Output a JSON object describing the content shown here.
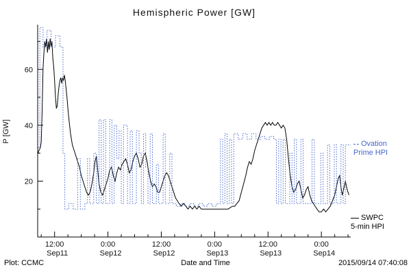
{
  "title": "Hemispheric Power [GW]",
  "ylabel": "P [GW]",
  "footer": {
    "left": "Plot: CCMC",
    "xlabel": "Date and Time",
    "right": "2015/09/14 07:40:08"
  },
  "legend": {
    "ovation_line1": "Ovation",
    "ovation_line2": "Prime HPI",
    "swpc_line1": "SWPC",
    "swpc_line2": "5-min HPI"
  },
  "colors": {
    "ovation": "#4466cc",
    "swpc": "#000000"
  },
  "chart_data": {
    "type": "line",
    "title": "Hemispheric Power [GW]",
    "xlabel": "Date and Time",
    "ylabel": "P [GW]",
    "x_unit": "hours since Sep11 00:00 (2015)",
    "xlim": [
      8.2,
      78.6
    ],
    "ylim": [
      0,
      76
    ],
    "grid": false,
    "legend_position": "right",
    "xticks": [
      {
        "t": 12,
        "time": "12:00",
        "date": "Sep11"
      },
      {
        "t": 24,
        "time": "0:00",
        "date": "Sep12"
      },
      {
        "t": 36,
        "time": "12:00",
        "date": "Sep12"
      },
      {
        "t": 48,
        "time": "0:00",
        "date": "Sep13"
      },
      {
        "t": 60,
        "time": "12:00",
        "date": "Sep13"
      },
      {
        "t": 72,
        "time": "0:00",
        "date": "Sep14"
      }
    ],
    "yticks": [
      20,
      40,
      60
    ],
    "yticks_minor": [
      10,
      30,
      50,
      70
    ],
    "xticks_minor_step_hours": 3,
    "series": [
      {
        "name": "SWPC 5-min HPI",
        "color": "#000000",
        "style": "solid",
        "mode": "linear",
        "points": [
          [
            8.3,
            30
          ],
          [
            8.5,
            31
          ],
          [
            8.8,
            32
          ],
          [
            9.0,
            34
          ],
          [
            9.2,
            45
          ],
          [
            9.4,
            60
          ],
          [
            9.6,
            66
          ],
          [
            9.8,
            70
          ],
          [
            10.0,
            68
          ],
          [
            10.2,
            71
          ],
          [
            10.4,
            66
          ],
          [
            10.6,
            70
          ],
          [
            10.8,
            67
          ],
          [
            11.0,
            71
          ],
          [
            11.2,
            68
          ],
          [
            11.4,
            70
          ],
          [
            11.6,
            64
          ],
          [
            11.8,
            61
          ],
          [
            12.0,
            56
          ],
          [
            12.2,
            50
          ],
          [
            12.4,
            46
          ],
          [
            12.6,
            47
          ],
          [
            12.8,
            51
          ],
          [
            13.0,
            54
          ],
          [
            13.2,
            56
          ],
          [
            13.4,
            57
          ],
          [
            13.6,
            55
          ],
          [
            13.8,
            57
          ],
          [
            14.0,
            56
          ],
          [
            14.2,
            58
          ],
          [
            14.4,
            56
          ],
          [
            14.6,
            53
          ],
          [
            14.8,
            50
          ],
          [
            15.0,
            46
          ],
          [
            15.3,
            41
          ],
          [
            15.6,
            37
          ],
          [
            16.0,
            33
          ],
          [
            16.4,
            31
          ],
          [
            16.8,
            29
          ],
          [
            17.2,
            27
          ],
          [
            17.6,
            25
          ],
          [
            18.0,
            22
          ],
          [
            18.4,
            20
          ],
          [
            18.8,
            18
          ],
          [
            19.2,
            16
          ],
          [
            19.6,
            15
          ],
          [
            20.0,
            16
          ],
          [
            20.4,
            19
          ],
          [
            20.8,
            23
          ],
          [
            21.1,
            27
          ],
          [
            21.4,
            29
          ],
          [
            21.7,
            24
          ],
          [
            22.0,
            19
          ],
          [
            22.4,
            16
          ],
          [
            22.8,
            15
          ],
          [
            23.2,
            17
          ],
          [
            23.6,
            19
          ],
          [
            24.0,
            21
          ],
          [
            24.4,
            24
          ],
          [
            24.8,
            25
          ],
          [
            25.2,
            22
          ],
          [
            25.6,
            20
          ],
          [
            26.0,
            23
          ],
          [
            26.4,
            25
          ],
          [
            26.8,
            24
          ],
          [
            27.2,
            26
          ],
          [
            27.6,
            27
          ],
          [
            28.0,
            28
          ],
          [
            28.4,
            26
          ],
          [
            28.8,
            23
          ],
          [
            29.2,
            24
          ],
          [
            29.6,
            27
          ],
          [
            30.0,
            29
          ],
          [
            30.4,
            30
          ],
          [
            30.8,
            28
          ],
          [
            31.2,
            25
          ],
          [
            31.6,
            26
          ],
          [
            32.0,
            29
          ],
          [
            32.4,
            30
          ],
          [
            32.8,
            27
          ],
          [
            33.2,
            23
          ],
          [
            33.6,
            20
          ],
          [
            34.0,
            18
          ],
          [
            34.4,
            19
          ],
          [
            34.8,
            18
          ],
          [
            35.2,
            16
          ],
          [
            35.6,
            16
          ],
          [
            36.0,
            18
          ],
          [
            36.4,
            20
          ],
          [
            36.8,
            22
          ],
          [
            37.2,
            23
          ],
          [
            37.6,
            22
          ],
          [
            38.0,
            20
          ],
          [
            38.4,
            18
          ],
          [
            38.8,
            16
          ],
          [
            39.2,
            14
          ],
          [
            39.6,
            13
          ],
          [
            40.0,
            12
          ],
          [
            40.5,
            11
          ],
          [
            41.0,
            12
          ],
          [
            41.5,
            11
          ],
          [
            42.0,
            10
          ],
          [
            42.5,
            11
          ],
          [
            43.0,
            10
          ],
          [
            43.5,
            11
          ],
          [
            44.0,
            10
          ],
          [
            44.5,
            11
          ],
          [
            45.0,
            10
          ],
          [
            45.5,
            10
          ],
          [
            46.0,
            10
          ],
          [
            47.0,
            10
          ],
          [
            48.0,
            10
          ],
          [
            49.0,
            10
          ],
          [
            50.0,
            10
          ],
          [
            51.0,
            10
          ],
          [
            52.0,
            11
          ],
          [
            52.5,
            11
          ],
          [
            53.0,
            12
          ],
          [
            53.5,
            13
          ],
          [
            54.0,
            16
          ],
          [
            54.5,
            19
          ],
          [
            55.0,
            22
          ],
          [
            55.4,
            25
          ],
          [
            55.8,
            27
          ],
          [
            56.2,
            26
          ],
          [
            56.6,
            28
          ],
          [
            57.0,
            31
          ],
          [
            57.4,
            33
          ],
          [
            57.8,
            35
          ],
          [
            58.2,
            37
          ],
          [
            58.6,
            39
          ],
          [
            59.0,
            40
          ],
          [
            59.4,
            41
          ],
          [
            59.8,
            40
          ],
          [
            60.2,
            41
          ],
          [
            60.6,
            40
          ],
          [
            61.0,
            41
          ],
          [
            61.4,
            40
          ],
          [
            61.8,
            40
          ],
          [
            62.2,
            41
          ],
          [
            62.6,
            40
          ],
          [
            63.0,
            39
          ],
          [
            63.4,
            40
          ],
          [
            63.8,
            39
          ],
          [
            64.2,
            35
          ],
          [
            64.6,
            28
          ],
          [
            65.0,
            22
          ],
          [
            65.4,
            18
          ],
          [
            65.8,
            16
          ],
          [
            66.2,
            17
          ],
          [
            66.6,
            19
          ],
          [
            67.0,
            20
          ],
          [
            67.4,
            17
          ],
          [
            67.8,
            14
          ],
          [
            68.2,
            15
          ],
          [
            68.6,
            17
          ],
          [
            69.0,
            18
          ],
          [
            69.4,
            15
          ],
          [
            69.8,
            13
          ],
          [
            70.2,
            12
          ],
          [
            70.6,
            11
          ],
          [
            71.0,
            10
          ],
          [
            71.5,
            9
          ],
          [
            72.0,
            9
          ],
          [
            72.5,
            10
          ],
          [
            73.0,
            9
          ],
          [
            73.5,
            10
          ],
          [
            74.0,
            11
          ],
          [
            74.5,
            13
          ],
          [
            75.0,
            15
          ],
          [
            75.4,
            18
          ],
          [
            75.8,
            21
          ],
          [
            76.1,
            22
          ],
          [
            76.4,
            18
          ],
          [
            76.7,
            15
          ],
          [
            77.0,
            17
          ],
          [
            77.4,
            20
          ],
          [
            77.8,
            17
          ],
          [
            78.2,
            15
          ]
        ]
      },
      {
        "name": "Ovation Prime HPI",
        "color": "#4466cc",
        "style": "dotted",
        "mode": "step",
        "points": [
          [
            8.3,
            32
          ],
          [
            8.7,
            75
          ],
          [
            9.4,
            68
          ],
          [
            10.3,
            74
          ],
          [
            11.2,
            68
          ],
          [
            12.2,
            72
          ],
          [
            13.2,
            68
          ],
          [
            13.9,
            30
          ],
          [
            14.3,
            10
          ],
          [
            15.2,
            12
          ],
          [
            16.2,
            10
          ],
          [
            17.2,
            28
          ],
          [
            17.8,
            10
          ],
          [
            18.8,
            12
          ],
          [
            19.4,
            28
          ],
          [
            19.9,
            12
          ],
          [
            20.8,
            30
          ],
          [
            21.4,
            12
          ],
          [
            22.0,
            42
          ],
          [
            22.5,
            12
          ],
          [
            23.0,
            42
          ],
          [
            23.5,
            12
          ],
          [
            24.4,
            42
          ],
          [
            24.9,
            12
          ],
          [
            25.4,
            40
          ],
          [
            26.0,
            28
          ],
          [
            26.5,
            38
          ],
          [
            27.0,
            12
          ],
          [
            27.5,
            40
          ],
          [
            28.4,
            12
          ],
          [
            29.0,
            38
          ],
          [
            29.5,
            12
          ],
          [
            30.4,
            38
          ],
          [
            31.0,
            30
          ],
          [
            31.5,
            12
          ],
          [
            32.0,
            37
          ],
          [
            32.5,
            25
          ],
          [
            33.0,
            12
          ],
          [
            33.5,
            37
          ],
          [
            34.0,
            12
          ],
          [
            34.9,
            26
          ],
          [
            35.4,
            12
          ],
          [
            36.4,
            37
          ],
          [
            36.9,
            12
          ],
          [
            37.9,
            30
          ],
          [
            38.4,
            12
          ],
          [
            39.4,
            11
          ],
          [
            40.4,
            12
          ],
          [
            41.4,
            11
          ],
          [
            42.4,
            12
          ],
          [
            43.4,
            11
          ],
          [
            44.4,
            12
          ],
          [
            45.4,
            11
          ],
          [
            46.4,
            12
          ],
          [
            47.4,
            11
          ],
          [
            48.4,
            12
          ],
          [
            49.3,
            35
          ],
          [
            49.8,
            12
          ],
          [
            50.3,
            37
          ],
          [
            50.8,
            12
          ],
          [
            51.3,
            35
          ],
          [
            51.8,
            12
          ],
          [
            52.3,
            37
          ],
          [
            53.3,
            35
          ],
          [
            54.3,
            37
          ],
          [
            55.3,
            35
          ],
          [
            56.3,
            37
          ],
          [
            57.3,
            35
          ],
          [
            58.3,
            36
          ],
          [
            59.3,
            35
          ],
          [
            60.3,
            36
          ],
          [
            61.3,
            35
          ],
          [
            61.9,
            12
          ],
          [
            62.4,
            35
          ],
          [
            62.9,
            12
          ],
          [
            63.4,
            35
          ],
          [
            63.9,
            12
          ],
          [
            64.9,
            30
          ],
          [
            65.4,
            12
          ],
          [
            65.9,
            35
          ],
          [
            66.4,
            12
          ],
          [
            67.4,
            35
          ],
          [
            67.9,
            12
          ],
          [
            68.9,
            12
          ],
          [
            69.9,
            35
          ],
          [
            70.4,
            12
          ],
          [
            71.4,
            12
          ],
          [
            71.9,
            30
          ],
          [
            72.4,
            12
          ],
          [
            73.4,
            33
          ],
          [
            73.9,
            12
          ],
          [
            74.9,
            33
          ],
          [
            75.4,
            12
          ],
          [
            76.4,
            33
          ],
          [
            76.9,
            12
          ],
          [
            77.4,
            33
          ],
          [
            78.4,
            33
          ]
        ]
      }
    ]
  }
}
